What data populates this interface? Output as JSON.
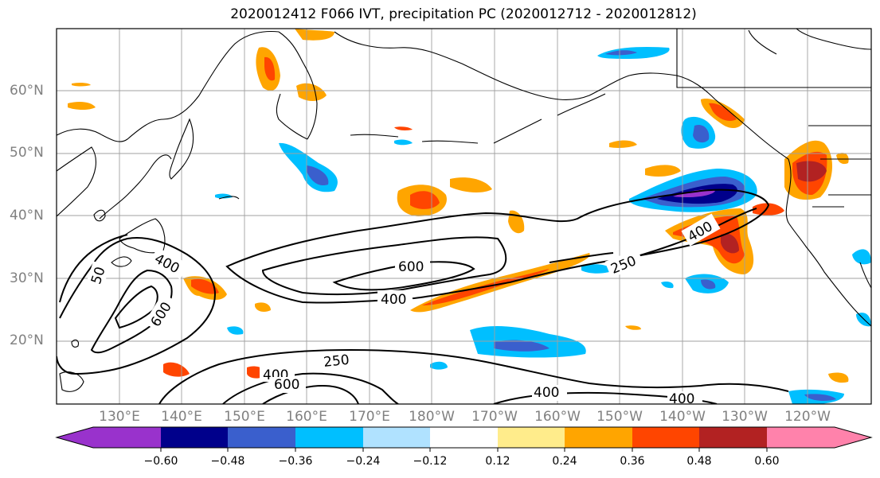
{
  "title": "2020012412 F066 IVT, precipitation PC (2020012712 - 2020012812)",
  "lat_labels": [
    "60°N",
    "50°N",
    "40°N",
    "30°N",
    "20°N"
  ],
  "lon_labels": [
    "130°E",
    "140°E",
    "150°E",
    "160°E",
    "170°E",
    "180°W",
    "170°W",
    "160°W",
    "150°W",
    "140°W",
    "130°W",
    "120°W"
  ],
  "contour_labels": [
    "600",
    "400",
    "250",
    "400",
    "600",
    "400",
    "250",
    "400",
    "600",
    "400",
    "400",
    "50"
  ],
  "colorbar": {
    "ticks": [
      "−0.60",
      "−0.48",
      "−0.36",
      "−0.24",
      "−0.12",
      "0.12",
      "0.24",
      "0.36",
      "0.48",
      "0.60"
    ],
    "colors": [
      "#9932cc",
      "#00008b",
      "#3a5fcd",
      "#00bfff",
      "#b0e2ff",
      "#ffffff",
      "#ffec8b",
      "#ffa500",
      "#ff4500",
      "#b22222",
      "#ff82ab"
    ]
  }
}
